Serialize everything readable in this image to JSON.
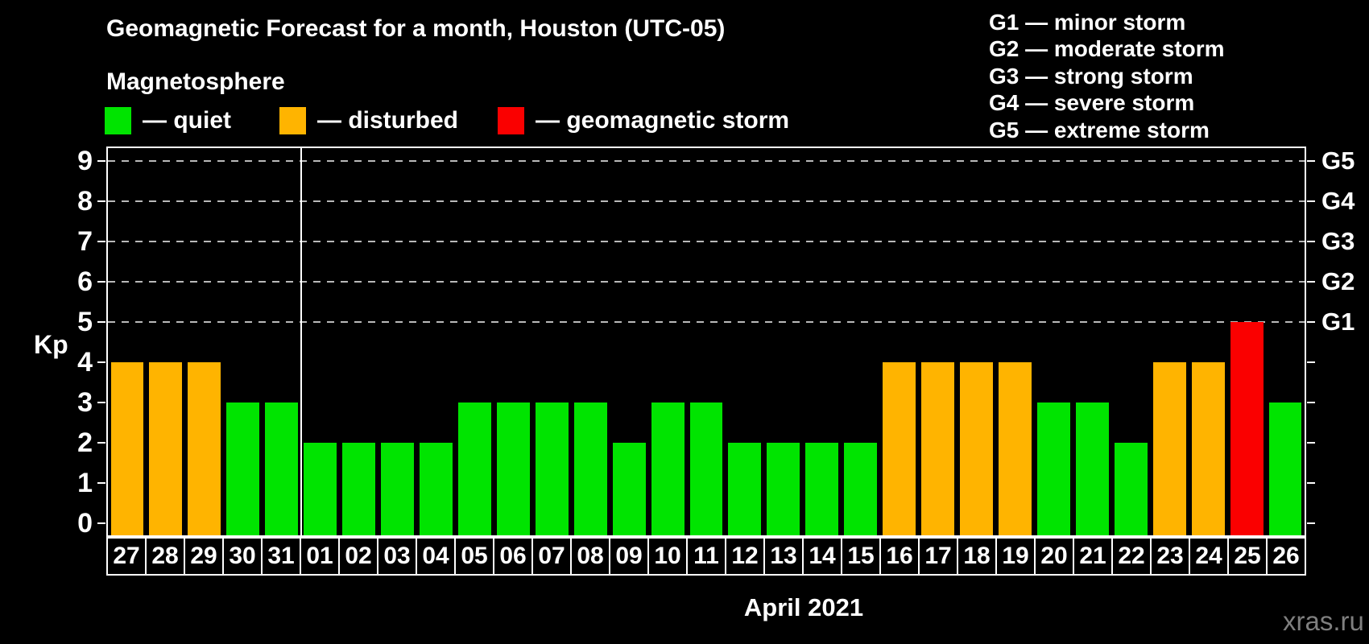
{
  "title": "Geomagnetic Forecast for a month, Houston (UTC-05)",
  "subtitle": "Magnetosphere",
  "legend": {
    "quiet": {
      "label": "— quiet",
      "color": "#00e400"
    },
    "disturbed": {
      "label": "— disturbed",
      "color": "#ffb400"
    },
    "storm": {
      "label": "— geomagnetic storm",
      "color": "#fa0000"
    }
  },
  "g_scale_legend": [
    "G1 — minor storm",
    "G2 — moderate storm",
    "G3 — strong storm",
    "G4 — severe storm",
    "G5 — extreme storm"
  ],
  "y_axis": {
    "label": "Kp",
    "ticks": [
      0,
      1,
      2,
      3,
      4,
      5,
      6,
      7,
      8,
      9
    ]
  },
  "right_axis_labels": [
    "G1",
    "G2",
    "G3",
    "G4",
    "G5"
  ],
  "x_title": "April 2021",
  "watermark": "xras.ru",
  "chart_data": {
    "type": "bar",
    "title": "Geomagnetic Forecast for a month, Houston (UTC-05)",
    "xlabel": "April 2021",
    "ylabel": "Kp",
    "ylim": [
      0,
      9
    ],
    "grid_levels": [
      5,
      6,
      7,
      8,
      9
    ],
    "grid_level_labels": [
      "G1",
      "G2",
      "G3",
      "G4",
      "G5"
    ],
    "month_separator_after_index": 4,
    "categories": [
      "27",
      "28",
      "29",
      "30",
      "31",
      "01",
      "02",
      "03",
      "04",
      "05",
      "06",
      "07",
      "08",
      "09",
      "10",
      "11",
      "12",
      "13",
      "14",
      "15",
      "16",
      "17",
      "18",
      "19",
      "20",
      "21",
      "22",
      "23",
      "24",
      "25",
      "26"
    ],
    "values": [
      4,
      4,
      4,
      3,
      3,
      2,
      2,
      2,
      2,
      3,
      3,
      3,
      3,
      2,
      3,
      3,
      2,
      2,
      2,
      2,
      4,
      4,
      4,
      4,
      3,
      3,
      2,
      4,
      4,
      5,
      3
    ],
    "statuses": [
      "disturbed",
      "disturbed",
      "disturbed",
      "quiet",
      "quiet",
      "quiet",
      "quiet",
      "quiet",
      "quiet",
      "quiet",
      "quiet",
      "quiet",
      "quiet",
      "quiet",
      "quiet",
      "quiet",
      "quiet",
      "quiet",
      "quiet",
      "quiet",
      "disturbed",
      "disturbed",
      "disturbed",
      "disturbed",
      "quiet",
      "quiet",
      "quiet",
      "disturbed",
      "disturbed",
      "storm",
      "quiet"
    ]
  }
}
